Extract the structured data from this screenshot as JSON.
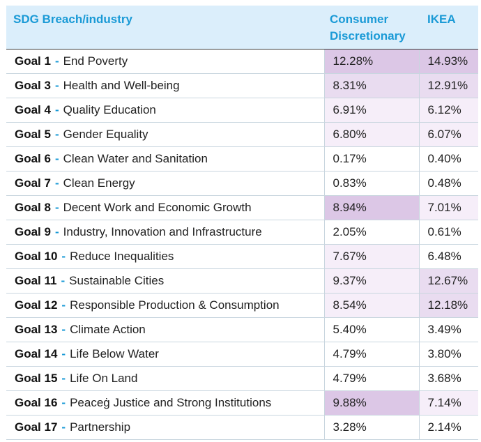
{
  "colors": {
    "header_bg": "#dbeefb",
    "header_text": "#1a9ad6",
    "level_high": "#dcc7e6",
    "level_mid": "#e9dcf0",
    "level_low": "#f6eef9",
    "level_none": "#ffffff"
  },
  "header": {
    "col1": "SDG Breach/industry",
    "col2": "Consumer Discretionary",
    "col3": "IKEA"
  },
  "rows": [
    {
      "goal": "Goal 1",
      "sep": "-",
      "name": "End Poverty",
      "cd": "12.28%",
      "ikea": "14.93%",
      "cd_level": "high",
      "ikea_level": "high"
    },
    {
      "goal": "Goal 3",
      "sep": "-",
      "name": "Health and Well-being",
      "cd": "8.31%",
      "ikea": "12.91%",
      "cd_level": "mid",
      "ikea_level": "mid"
    },
    {
      "goal": "Goal 4",
      "sep": "-",
      "name": "Quality Education",
      "cd": "6.91%",
      "ikea": "6.12%",
      "cd_level": "low",
      "ikea_level": "low"
    },
    {
      "goal": "Goal 5",
      "sep": "-",
      "name": "Gender Equality",
      "cd": "6.80%",
      "ikea": "6.07%",
      "cd_level": "low",
      "ikea_level": "low"
    },
    {
      "goal": "Goal 6",
      "sep": "-",
      "name": "Clean Water and Sanitation",
      "cd": "0.17%",
      "ikea": "0.40%",
      "cd_level": "none",
      "ikea_level": "none"
    },
    {
      "goal": "Goal 7",
      "sep": "-",
      "name": "Clean Energy",
      "cd": "0.83%",
      "ikea": "0.48%",
      "cd_level": "none",
      "ikea_level": "none"
    },
    {
      "goal": "Goal 8",
      "sep": "-",
      "name": "Decent Work and Economic Growth",
      "cd": "8.94%",
      "ikea": "7.01%",
      "cd_level": "high",
      "ikea_level": "low"
    },
    {
      "goal": "Goal 9",
      "sep": "-",
      "name": "Industry, Innovation and Infrastructure",
      "cd": "2.05%",
      "ikea": "0.61%",
      "cd_level": "none",
      "ikea_level": "none"
    },
    {
      "goal": "Goal 10",
      "sep": "-",
      "name": "Reduce Inequalities",
      "cd": "7.67%",
      "ikea": "6.48%",
      "cd_level": "low",
      "ikea_level": "none"
    },
    {
      "goal": "Goal 11",
      "sep": "-",
      "name": "Sustainable Cities",
      "cd": "9.37%",
      "ikea": "12.67%",
      "cd_level": "low",
      "ikea_level": "mid"
    },
    {
      "goal": "Goal 12",
      "sep": "-",
      "name": "Responsible Production & Consumption",
      "cd": "8.54%",
      "ikea": "12.18%",
      "cd_level": "low",
      "ikea_level": "mid"
    },
    {
      "goal": "Goal 13",
      "sep": "-",
      "name": "Climate Action",
      "cd": "5.40%",
      "ikea": "3.49%",
      "cd_level": "none",
      "ikea_level": "none"
    },
    {
      "goal": "Goal 14",
      "sep": "-",
      "name": "Life Below Water",
      "cd": "4.79%",
      "ikea": "3.80%",
      "cd_level": "none",
      "ikea_level": "none"
    },
    {
      "goal": "Goal 15",
      "sep": "-",
      "name": "Life On Land",
      "cd": "4.79%",
      "ikea": "3.68%",
      "cd_level": "none",
      "ikea_level": "none"
    },
    {
      "goal": "Goal 16",
      "sep": "-",
      "name": "Peaceġ Justice and Strong Institutions",
      "cd": "9.88%",
      "ikea": "7.14%",
      "cd_level": "high",
      "ikea_level": "low"
    },
    {
      "goal": "Goal 17",
      "sep": "-",
      "name": "Partnership",
      "cd": "3.28%",
      "ikea": "2.14%",
      "cd_level": "none",
      "ikea_level": "none"
    }
  ]
}
